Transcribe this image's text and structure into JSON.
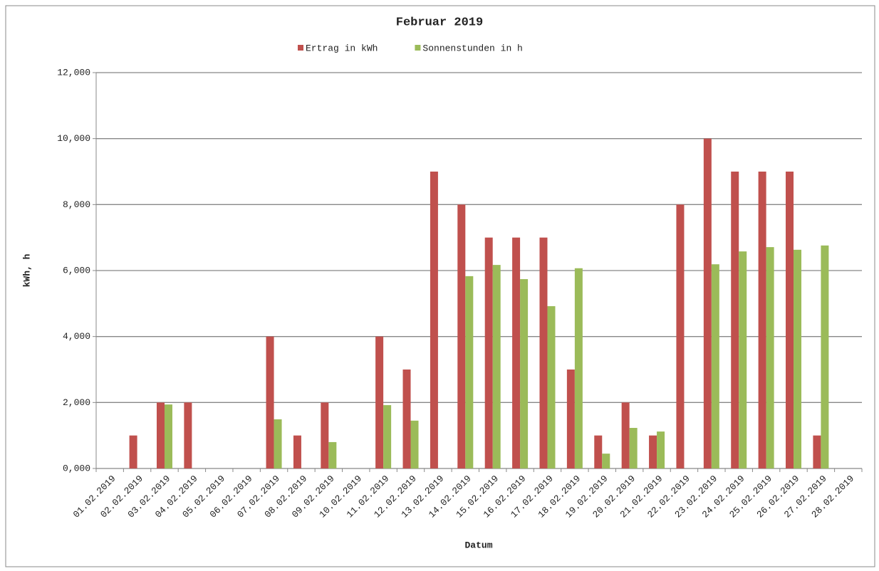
{
  "chart_data": {
    "type": "bar",
    "title": "Februar 2019",
    "x_label": "Datum",
    "y_label": "kWh, h",
    "categories": [
      "01.02.2019",
      "02.02.2019",
      "03.02.2019",
      "04.02.2019",
      "05.02.2019",
      "06.02.2019",
      "07.02.2019",
      "08.02.2019",
      "09.02.2019",
      "10.02.2019",
      "11.02.2019",
      "12.02.2019",
      "13.02.2019",
      "14.02.2019",
      "15.02.2019",
      "16.02.2019",
      "17.02.2019",
      "18.02.2019",
      "19.02.2019",
      "20.02.2019",
      "21.02.2019",
      "22.02.2019",
      "23.02.2019",
      "24.02.2019",
      "25.02.2019",
      "26.02.2019",
      "27.02.2019",
      "28.02.2019"
    ],
    "series": [
      {
        "name": "Ertrag in kWh",
        "color": "#c0504d",
        "values": [
          0,
          1,
          2,
          2,
          0,
          0,
          4,
          1,
          2,
          0,
          4,
          3,
          9,
          8,
          7,
          7,
          7,
          3,
          1,
          2,
          1,
          8,
          10,
          9,
          9,
          9,
          1,
          0
        ]
      },
      {
        "name": "Sonnenstunden in h",
        "color": "#9bbb59",
        "values": [
          0,
          0,
          1.94,
          0,
          0,
          0,
          1.49,
          0,
          0.8,
          0,
          1.92,
          1.45,
          0,
          5.83,
          6.17,
          5.74,
          4.92,
          6.07,
          0.45,
          1.23,
          1.12,
          0,
          6.19,
          6.58,
          6.71,
          6.63,
          6.76,
          0
        ]
      }
    ],
    "ylim": [
      0,
      12
    ],
    "yticks": [
      {
        "value": 0,
        "label": "0,000"
      },
      {
        "value": 2,
        "label": "2,000"
      },
      {
        "value": 4,
        "label": "4,000"
      },
      {
        "value": 6,
        "label": "6,000"
      },
      {
        "value": 8,
        "label": "8,000"
      },
      {
        "value": 10,
        "label": "10,000"
      },
      {
        "value": 12,
        "label": "12,000"
      }
    ],
    "grid": true,
    "legend": "top"
  }
}
